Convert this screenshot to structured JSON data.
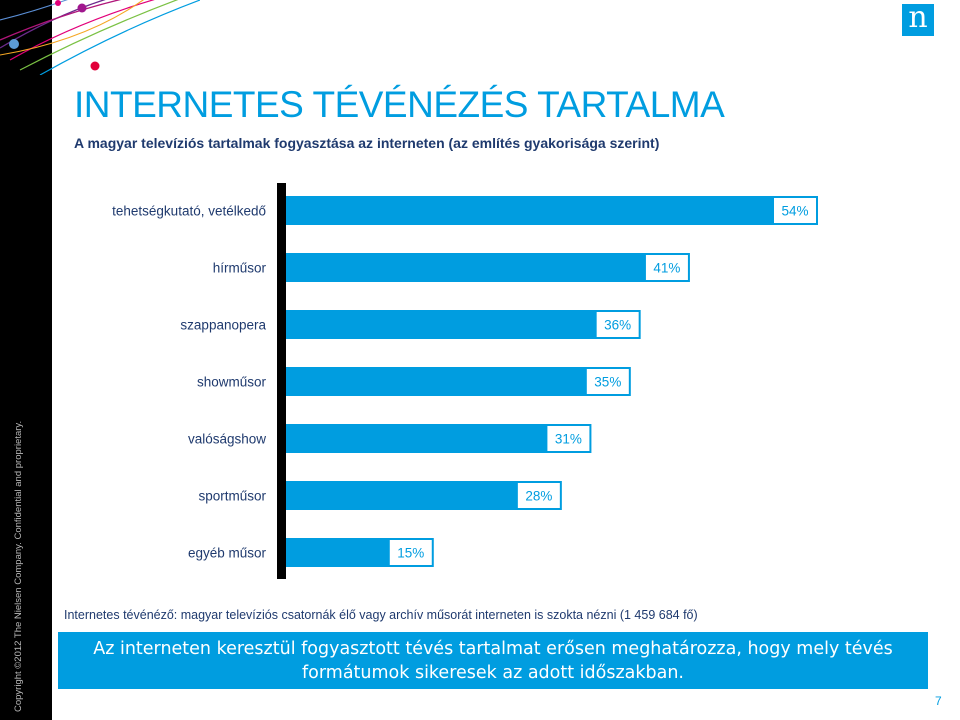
{
  "header": {
    "title": "INTERNETES TÉVÉNÉZÉS TARTALMA",
    "subtitle": "A magyar televíziós tartalmak fogyasztása az interneten (az említés gyakorisága szerint)",
    "logo_letter": "n"
  },
  "copyright": "Copyright ©2012 The Nielsen Company. Confidential and proprietary.",
  "footnote": "Internetes tévénéző: magyar televíziós csatornák élő vagy archív műsorát interneten is szokta nézni (1 459 684 fő)",
  "callout": {
    "line1": "Az interneten keresztül fogyasztott tévés tartalmat erősen meghatározza, hogy mely tévés",
    "line2": "formátumok sikeresek az adott időszakban."
  },
  "page_number": "7",
  "colors": {
    "accent": "#009de0",
    "dark_blue": "#1f3a6e",
    "axis": "#000000"
  },
  "chart_data": {
    "type": "bar",
    "orientation": "horizontal",
    "title": "",
    "xlabel": "",
    "ylabel": "",
    "xlim": [
      0,
      54
    ],
    "categories": [
      "tehetségkutató, vetélkedő",
      "hírműsor",
      "szappanopera",
      "showműsor",
      "valóságshow",
      "sportműsor",
      "egyéb műsor"
    ],
    "values": [
      54,
      41,
      36,
      35,
      31,
      28,
      15
    ],
    "value_labels": [
      "54%",
      "41%",
      "36%",
      "35%",
      "31%",
      "28%",
      "15%"
    ],
    "grid": false,
    "legend": "none"
  }
}
